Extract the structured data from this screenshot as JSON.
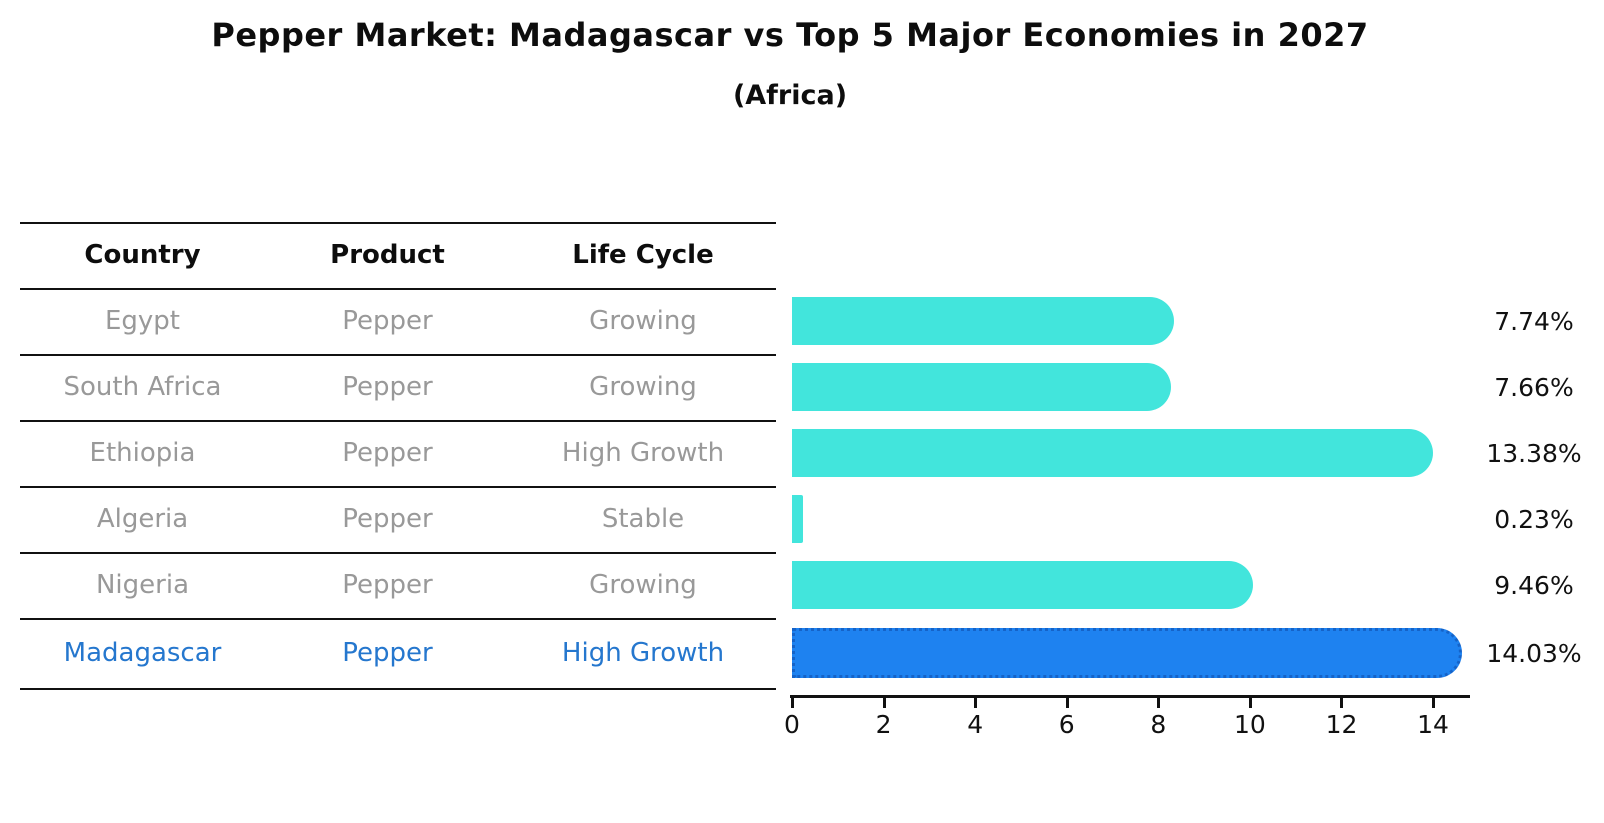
{
  "title": "Pepper Market: Madagascar vs Top 5 Major Economies in 2027",
  "subtitle": "(Africa)",
  "table": {
    "columns": [
      "Country",
      "Product",
      "Life Cycle"
    ]
  },
  "chart_data": {
    "type": "bar",
    "orientation": "horizontal",
    "title": "Pepper Market: Madagascar vs Top 5 Major Economies in 2027",
    "subtitle": "(Africa)",
    "xlabel": "",
    "ylabel": "",
    "xlim": [
      0,
      14.8
    ],
    "x_ticks": [
      0,
      2,
      4,
      6,
      8,
      10,
      12,
      14
    ],
    "grid": false,
    "legend": "none",
    "value_format": "percent",
    "rows": [
      {
        "country": "Egypt",
        "product": "Pepper",
        "life_cycle": "Growing",
        "value": 7.74,
        "label": "7.74%",
        "highlight": false
      },
      {
        "country": "South Africa",
        "product": "Pepper",
        "life_cycle": "Growing",
        "value": 7.66,
        "label": "7.66%",
        "highlight": false
      },
      {
        "country": "Ethiopia",
        "product": "Pepper",
        "life_cycle": "High Growth",
        "value": 13.38,
        "label": "13.38%",
        "highlight": false
      },
      {
        "country": "Algeria",
        "product": "Pepper",
        "life_cycle": "Stable",
        "value": 0.23,
        "label": "0.23%",
        "highlight": false
      },
      {
        "country": "Nigeria",
        "product": "Pepper",
        "life_cycle": "Growing",
        "value": 9.46,
        "label": "9.46%",
        "highlight": false
      },
      {
        "country": "Madagascar",
        "product": "Pepper",
        "life_cycle": "High Growth",
        "value": 14.03,
        "label": "14.03%",
        "highlight": true
      }
    ],
    "colors": {
      "bar": "#42E5DC",
      "highlight_bar": "#1E82F0",
      "highlight_bar_border": "#1563C8",
      "row_text": "#999999",
      "highlight_text": "#2577CE",
      "header_text": "#0d0d0d",
      "axis_text": "#111111",
      "line": "#111111"
    }
  }
}
